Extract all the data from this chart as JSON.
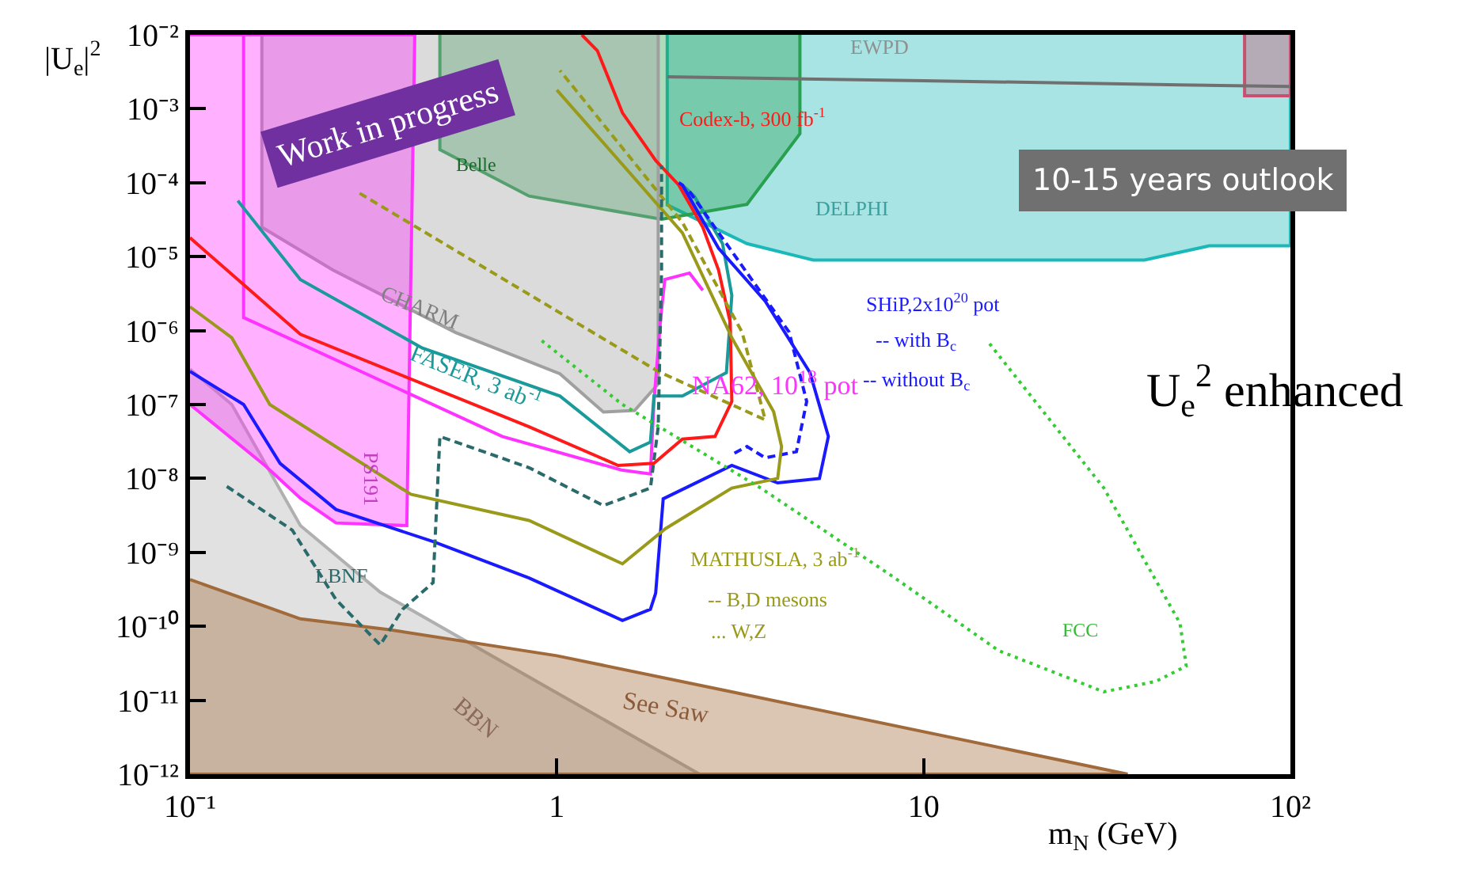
{
  "chart_data": {
    "type": "line",
    "xlabel": "m$_{N}$ (GeV)",
    "ylabel": "|U$_{e}$|$^{2}$",
    "log": "xy",
    "marker": "none",
    "xlim": [
      0.1,
      100
    ],
    "ylim": [
      1e-12,
      0.01
    ],
    "xticks": [
      {
        "value": 0.1,
        "label": "10⁻¹"
      },
      1,
      10,
      {
        "value": 100,
        "label": "10²"
      }
    ],
    "yticks": [
      {
        "value": 1e-12,
        "label": "10⁻¹²"
      },
      {
        "value": 1e-11,
        "label": "10⁻¹¹"
      },
      {
        "value": 1e-10,
        "label": "10⁻¹⁰"
      },
      {
        "value": 1e-09,
        "label": "10⁻⁹"
      },
      {
        "value": 1e-08,
        "label": "10⁻⁸"
      },
      {
        "value": 1e-07,
        "label": "10⁻⁷"
      },
      {
        "value": 1e-06,
        "label": "10⁻⁶"
      },
      {
        "value": 1e-05,
        "label": "10⁻⁵"
      },
      {
        "value": 0.0001,
        "label": "10⁻⁴"
      },
      {
        "value": 0.001,
        "label": "10⁻³"
      },
      {
        "value": 0.01,
        "label": "10⁻²"
      }
    ],
    "series": [
      {
        "type": "area",
        "color": "#1ab8b8",
        "x": [
          2.0,
          2.0,
          3.3,
          5,
          40,
          60,
          100,
          100
        ],
        "values": [
          0.01,
          5e-05,
          1.5e-05,
          9e-06,
          9e-06,
          1.4e-05,
          1.4e-05,
          0.01
        ]
      },
      {
        "type": "area",
        "color": "#28a050",
        "x": [
          0.48,
          0.48,
          0.84,
          1.93,
          3.3,
          4.6,
          4.6
        ],
        "values": [
          0.01,
          0.00028,
          6.6e-05,
          3.2e-05,
          5.1e-05,
          0.00046,
          0.01
        ]
      },
      {
        "type": "area",
        "color": "#c8506e",
        "x": [
          75,
          75,
          100,
          100
        ],
        "values": [
          0.01,
          0.0015,
          0.0015,
          0.01
        ]
      },
      {
        "type": "area",
        "color": "#b0b0b0",
        "x": [
          0.1,
          0.13,
          0.2,
          0.33,
          1,
          2.45,
          0.1
        ],
        "values": [
          3e-07,
          1e-07,
          2.3e-09,
          2.9e-10,
          1.26e-11,
          1e-12,
          1e-12
        ]
      },
      {
        "type": "area",
        "color": "#a0a0a0",
        "x": [
          0.157,
          0.157,
          0.245,
          0.53,
          1.02,
          1.34,
          1.63,
          1.89,
          1.89
        ],
        "values": [
          0.01,
          2.5e-05,
          6.6e-06,
          9.4e-07,
          2.6e-07,
          7.9e-08,
          8.3e-08,
          1.9e-07,
          0.01
        ]
      },
      {
        "type": "area",
        "color": "#ff33ff",
        "x": [
          0.1,
          0.41,
          0.39,
          0.25,
          0.2,
          0.16,
          0.1
        ],
        "values": [
          0.01,
          0.01,
          2.3e-09,
          2.5e-09,
          5.4e-09,
          1.5e-08,
          1e-07
        ]
      },
      {
        "type": "area",
        "color": "#a06a3a",
        "x": [
          0.1,
          0.2,
          0.35,
          1,
          3.0,
          36,
          0.1
        ],
        "values": [
          4.3e-10,
          1.26e-10,
          9e-11,
          4e-11,
          1.3e-11,
          1e-12,
          1e-12
        ]
      },
      {
        "color": "#707070",
        "x": [
          2,
          10,
          50,
          100
        ],
        "values": [
          0.0027,
          0.0024,
          0.0021,
          0.002
        ]
      },
      {
        "color": "#ff33ff",
        "x": [
          0.14,
          0.14,
          0.71,
          1.5,
          1.8,
          1.84,
          1.92,
          1.97,
          2.3,
          2.5
        ],
        "values": [
          0.01,
          1.5e-06,
          3.7e-08,
          1.3e-08,
          1.15e-08,
          1.1e-07,
          1.5e-06,
          4.9e-06,
          6e-06,
          3.5e-06
        ]
      },
      {
        "color": "#1a9a9a",
        "x": [
          0.135,
          0.2,
          0.43,
          1.02,
          1.58,
          1.8,
          1.84,
          2.2,
          2.9,
          3.0,
          2.83,
          2.37,
          2.2
        ],
        "values": [
          5.7e-05,
          4.9e-06,
          5.8e-07,
          1.3e-07,
          2.3e-08,
          3.1e-08,
          1.3e-07,
          1.3e-07,
          2.7e-07,
          3e-06,
          1.5e-05,
          6.6e-05,
          9.3e-05
        ]
      },
      {
        "color": "#ff1a1a",
        "x": [
          0.1,
          0.2,
          0.84,
          1.47,
          1.84,
          2.2,
          2.7,
          3.0,
          2.97,
          2.76,
          2.5,
          2.15,
          1.86,
          1.51,
          1.29,
          1.17
        ],
        "values": [
          1.8e-05,
          8.9e-07,
          5e-08,
          1.5e-08,
          1.6e-08,
          3.4e-08,
          3.7e-08,
          1.1e-07,
          1.3e-06,
          6.6e-06,
          2.5e-05,
          9.3e-05,
          0.0002,
          0.00088,
          0.0061,
          0.01
        ]
      },
      {
        "color": "#1a1aff",
        "x": [
          0.1,
          0.14,
          0.176,
          0.25,
          0.46,
          0.84,
          1.51,
          1.8,
          1.86,
          1.95,
          3.0,
          4.0,
          5.2,
          5.5,
          4.9,
          3.7,
          2.76,
          2.2,
          2.15
        ],
        "values": [
          2.8e-07,
          1e-07,
          1.6e-08,
          3.8e-09,
          1.4e-09,
          4.5e-10,
          1.2e-10,
          1.7e-10,
          2.8e-10,
          5.3e-09,
          1.5e-08,
          8.7e-09,
          1e-08,
          3.7e-08,
          2.7e-07,
          2.5e-06,
          1.3e-05,
          9.3e-05,
          0.0001
        ]
      },
      {
        "color": "#1a1aff",
        "line_style": "dashed",
        "x": [
          2.3,
          3.4,
          4.3,
          4.8,
          4.5,
          3.7,
          3.3,
          3.0
        ],
        "values": [
          7.6e-05,
          4.9e-06,
          9.5e-07,
          1.1e-07,
          2.3e-08,
          1.9e-08,
          2.7e-08,
          2.1e-08
        ]
      },
      {
        "color": "#9a9a1a",
        "x": [
          0.1,
          0.13,
          0.165,
          0.4,
          0.84,
          1.51,
          1.98,
          3.0,
          4.0,
          4.1,
          3.9,
          3.0,
          2.2,
          1.0
        ],
        "values": [
          2.1e-06,
          8e-07,
          1e-07,
          6.1e-09,
          2.7e-09,
          7e-10,
          2.1e-09,
          7.4e-09,
          1e-08,
          2.7e-08,
          8e-08,
          8e-07,
          2.1e-05,
          0.0018
        ]
      },
      {
        "color": "#9a9a1a",
        "line_style": "dashed",
        "x": [
          0.29,
          1.89,
          3.7,
          3.2,
          2.2,
          1.02
        ],
        "values": [
          7.2e-05,
          2.8e-07,
          6.2e-08,
          9.5e-07,
          2.9e-05,
          0.0033
        ]
      },
      {
        "color": "#2a6a6a",
        "line_style": "dashed",
        "x": [
          0.126,
          0.19,
          0.25,
          0.33,
          0.38,
          0.46,
          0.48,
          0.84,
          1.34,
          1.8,
          1.89,
          1.93,
          1.93
        ],
        "values": [
          7.8e-09,
          2e-09,
          2.3e-10,
          5.6e-11,
          1.7e-10,
          3.9e-10,
          3.7e-08,
          1.4e-08,
          4.3e-09,
          7.4e-09,
          5e-08,
          6.6e-06,
          0.00017
        ]
      },
      {
        "color": "#33cc33",
        "line_style": "dotted",
        "x": [
          0.91,
          1.51,
          3.6,
          8.3,
          16,
          31,
          43,
          52,
          50,
          31,
          15
        ],
        "values": [
          7.3e-07,
          1e-07,
          7.4e-09,
          4.6e-10,
          4.7e-11,
          1.3e-11,
          1.8e-11,
          2.9e-11,
          1.1e-10,
          7.4e-09,
          7e-07
        ]
      }
    ],
    "annotations": [
      "Work in progress",
      "10-15 years outlook",
      "U$_{e}$$^{2}$ enhanced",
      "EWPD",
      "DELPHI",
      "Belle",
      "CHARM",
      "FASER, 3 ab$^{-1}$",
      "NA62, 10$^{18}$ pot",
      "Codex-b, 300 fb$^{-1}$",
      "PS191",
      "LBNF",
      "BBN",
      "See Saw",
      "FCC",
      "SHiP,2x10$^{20}$ pot",
      "-- with B$_{c}$",
      "-- without B$_{c}$",
      "MATHUSLA, 3 ab$^{-1}$",
      "-- B,D mesons",
      "... W,Z"
    ]
  }
}
